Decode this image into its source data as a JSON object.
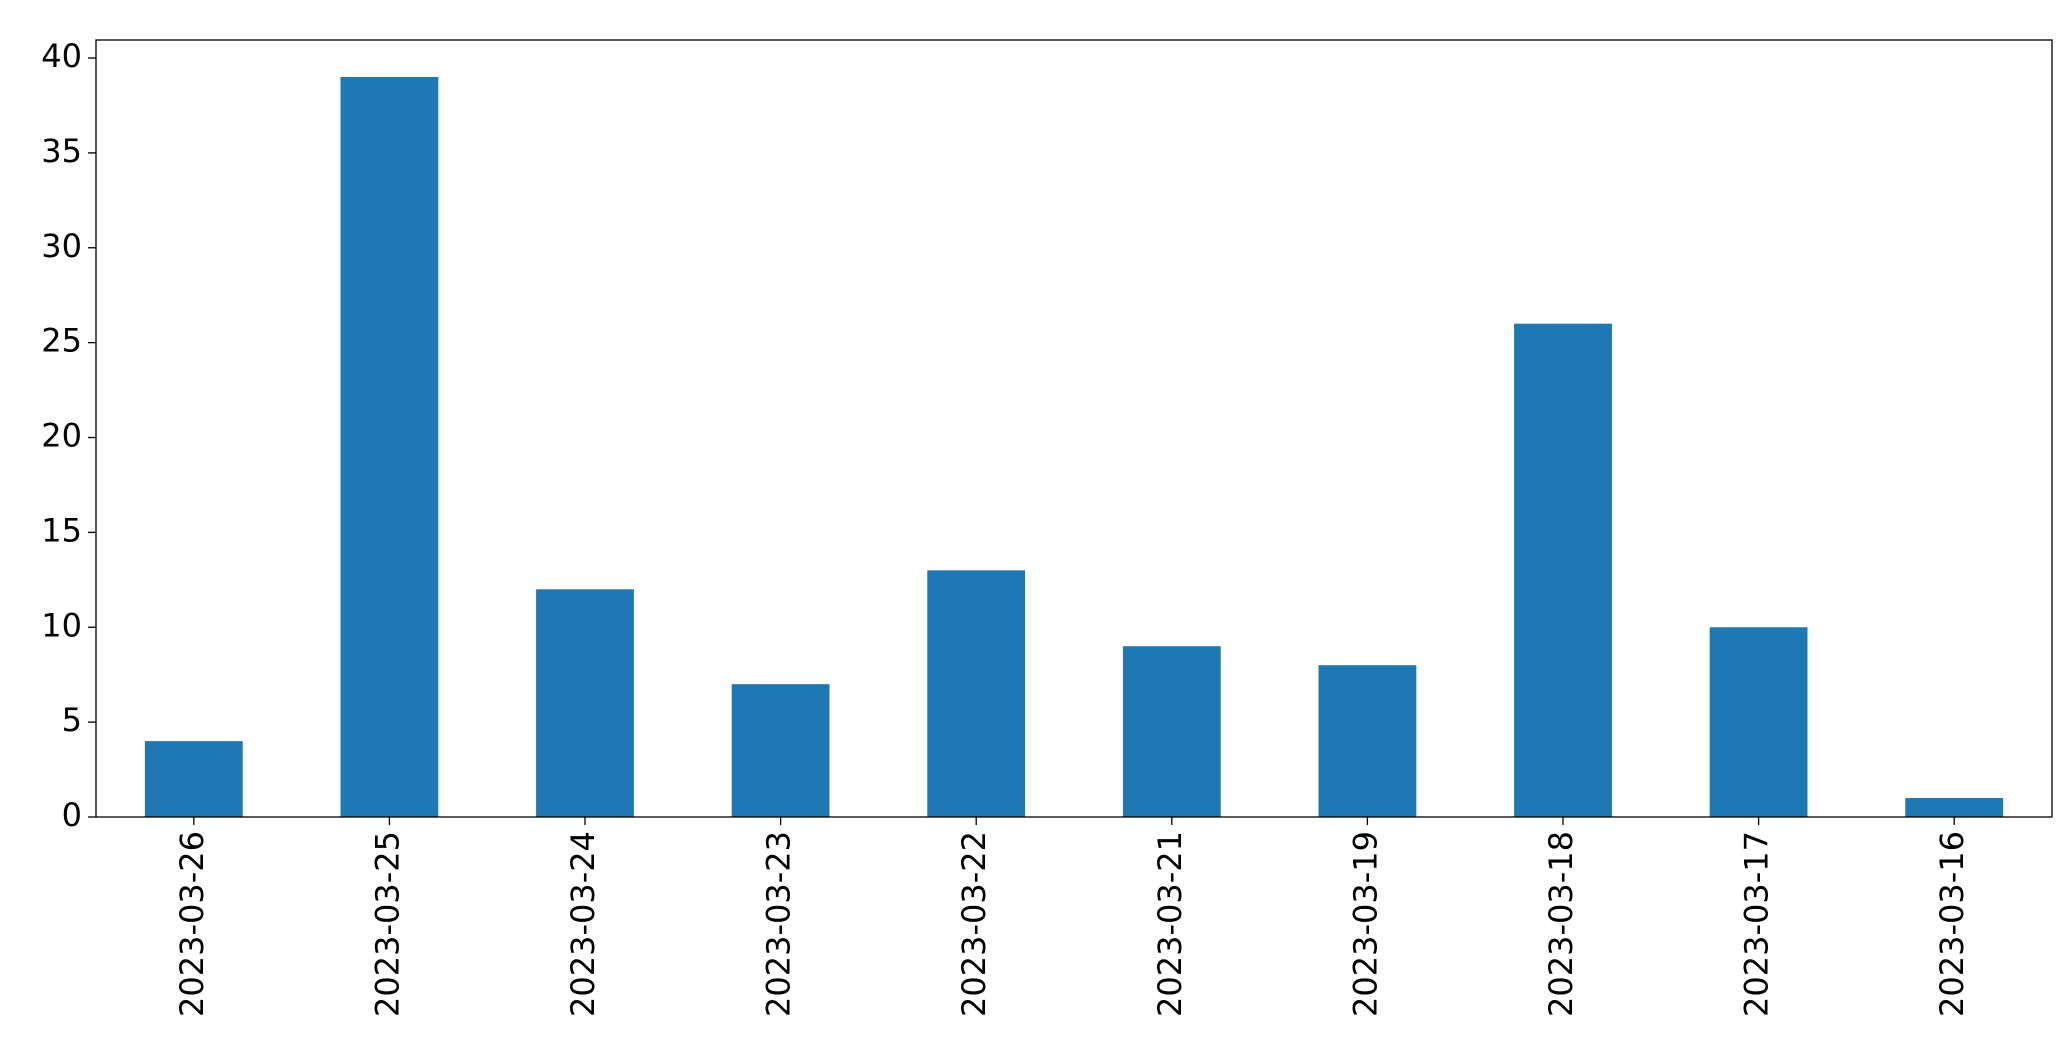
{
  "chart_data": {
    "type": "bar",
    "categories": [
      "2023-03-26",
      "2023-03-25",
      "2023-03-24",
      "2023-03-23",
      "2023-03-22",
      "2023-03-21",
      "2023-03-19",
      "2023-03-18",
      "2023-03-17",
      "2023-03-16"
    ],
    "values": [
      4,
      39,
      12,
      7,
      13,
      9,
      8,
      26,
      10,
      1
    ],
    "color": "#1f77b4",
    "ylim": [
      0,
      40.95
    ],
    "yticks": [
      0,
      5,
      10,
      15,
      20,
      25,
      30,
      35,
      40
    ],
    "grid": false
  }
}
